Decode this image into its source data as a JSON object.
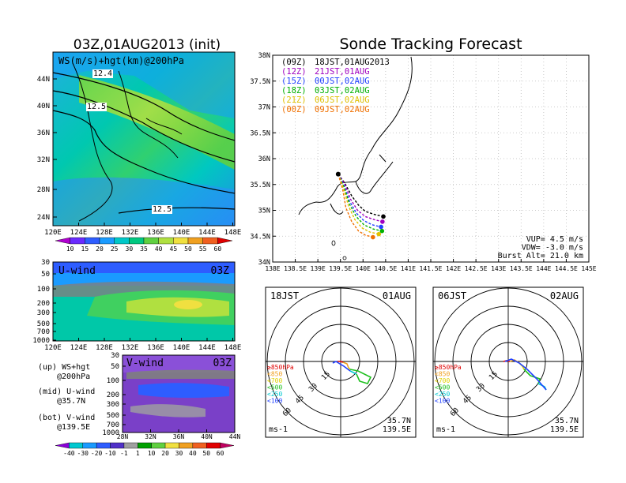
{
  "left_title": "03Z,01AUG2013 (init)",
  "right_title": "Sonde Tracking Forecast",
  "map": {
    "label": "WS(m/s)+hgt(km)@200hPa",
    "lat_ticks": [
      "44N",
      "40N",
      "36N",
      "32N",
      "28N",
      "24N"
    ],
    "lon_ticks": [
      "120E",
      "124E",
      "128E",
      "132E",
      "136E",
      "140E",
      "144E",
      "148E"
    ],
    "contour_labels": [
      "12.4",
      "12.5",
      "12.5"
    ],
    "colorbar": [
      "10",
      "15",
      "20",
      "25",
      "30",
      "35",
      "40",
      "45",
      "50",
      "55",
      "60"
    ],
    "colorbar_colors": [
      "#b000d0",
      "#6a2bff",
      "#2e5dff",
      "#1a9bff",
      "#00c8c8",
      "#00c880",
      "#60d040",
      "#b0e040",
      "#f0e040",
      "#f0a020",
      "#f06020",
      "#e00000"
    ]
  },
  "uwind": {
    "label": "U-wind",
    "time": "03Z",
    "p_ticks": [
      "30",
      "50",
      "100",
      "200",
      "300",
      "500",
      "700",
      "1000"
    ],
    "lon_ticks": [
      "120E",
      "124E",
      "128E",
      "132E",
      "136E",
      "140E",
      "144E",
      "148E"
    ]
  },
  "vwind": {
    "label": "V-wind",
    "time": "03Z",
    "p_ticks": [
      "30",
      "50",
      "100",
      "200",
      "300",
      "500",
      "700",
      "1000"
    ],
    "lat_ticks": [
      "28N",
      "32N",
      "36N",
      "40N",
      "44N"
    ],
    "colorbar": [
      "-40",
      "-30",
      "-20",
      "-10",
      "-1",
      "1",
      "10",
      "20",
      "30",
      "40",
      "50",
      "60"
    ],
    "colorbar_colors": [
      "#8a00d8",
      "#00c8d0",
      "#1a9bff",
      "#2e5dff",
      "#5030c8",
      "#a0a0a0",
      "#00a000",
      "#60d040",
      "#f0e040",
      "#f0a020",
      "#f06020",
      "#e00000",
      "#c00060"
    ]
  },
  "notes": [
    "(up) WS+hgt",
    "@200hPa",
    "(mid) U-wind",
    "@35.7N",
    "(bot) V-wind",
    "@139.5E"
  ],
  "track": {
    "lat_ticks": [
      "38N",
      "37.5N",
      "37N",
      "36.5N",
      "36N",
      "35.5N",
      "35N",
      "34.5N",
      "34N"
    ],
    "lon_ticks": [
      "138E",
      "138.5E",
      "139E",
      "139.5E",
      "140E",
      "140.5E",
      "141E",
      "141.5E",
      "142E",
      "142.5E",
      "143E",
      "143.5E",
      "144E",
      "144.5E",
      "145E"
    ],
    "legend": [
      {
        "z": "(09Z)",
        "jst": "18JST,01AUG2013",
        "color": "#000000"
      },
      {
        "z": "(12Z)",
        "jst": "21JST,01AUG",
        "color": "#a000c0"
      },
      {
        "z": "(15Z)",
        "jst": "00JST,02AUG",
        "color": "#2040ff"
      },
      {
        "z": "(18Z)",
        "jst": "03JST,02AUG",
        "color": "#00b000"
      },
      {
        "z": "(21Z)",
        "jst": "06JST,02AUG",
        "color": "#e0c000"
      },
      {
        "z": "(00Z)",
        "jst": "09JST,02AUG",
        "color": "#f07000"
      }
    ],
    "info": [
      "VUP= 4.5 m/s",
      "VDW= -3.0 m/s",
      "Burst Alt= 21.0 km"
    ]
  },
  "hodo_left": {
    "time": "18JST",
    "date": "01AUG",
    "lat": "35.7N",
    "lon": "139.5E",
    "unit": "ms-1",
    "rings": [
      "15",
      "30",
      "45",
      "60"
    ]
  },
  "hodo_right": {
    "time": "06JST",
    "date": "02AUG",
    "lat": "35.7N",
    "lon": "139.5E",
    "unit": "ms-1",
    "rings": [
      "15",
      "30",
      "45",
      "60"
    ]
  },
  "hodo_legend": [
    {
      "label": "≥850hPa",
      "color": "#e00000"
    },
    {
      "label": "<850",
      "color": "#f0a020"
    },
    {
      "label": "<700",
      "color": "#e0d000"
    },
    {
      "label": "<500",
      "color": "#20c020"
    },
    {
      "label": "<250",
      "color": "#00c8d0"
    },
    {
      "label": "<100",
      "color": "#2040ff"
    }
  ],
  "chart_data": [
    {
      "type": "line",
      "title": "Sonde Tracking Forecast",
      "xlabel": "",
      "ylabel": "",
      "xlim": [
        138,
        145
      ],
      "ylim": [
        34,
        38
      ],
      "series": [
        {
          "name": "(09Z) 18JST,01AUG2013",
          "x": [
            139.45,
            139.6,
            139.75,
            139.9,
            140.05,
            140.25,
            140.45
          ],
          "y": [
            35.7,
            35.52,
            35.28,
            35.1,
            34.98,
            34.92,
            34.88
          ]
        },
        {
          "name": "(12Z) 21JST,01AUG",
          "x": [
            139.45,
            139.6,
            139.72,
            139.88,
            140.05,
            140.25,
            140.43
          ],
          "y": [
            35.7,
            35.5,
            35.22,
            35.0,
            34.88,
            34.82,
            34.78
          ]
        },
        {
          "name": "(15Z) 00JST,02AUG",
          "x": [
            139.45,
            139.58,
            139.7,
            139.85,
            140.02,
            140.2,
            140.4
          ],
          "y": [
            35.7,
            35.48,
            35.18,
            34.95,
            34.8,
            34.72,
            34.68
          ]
        },
        {
          "name": "(18Z) 03JST,02AUG",
          "x": [
            139.45,
            139.58,
            139.7,
            139.85,
            140.02,
            140.22,
            140.42
          ],
          "y": [
            35.7,
            35.45,
            35.12,
            34.88,
            34.72,
            34.64,
            34.6
          ]
        },
        {
          "name": "(21Z) 06JST,02AUG",
          "x": [
            139.45,
            139.57,
            139.68,
            139.82,
            139.98,
            140.15,
            140.35
          ],
          "y": [
            35.7,
            35.42,
            35.08,
            34.82,
            34.66,
            34.58,
            34.54
          ]
        },
        {
          "name": "(00Z) 09JST,02AUG",
          "x": [
            139.45,
            139.55,
            139.62,
            139.75,
            139.9,
            140.05,
            140.22
          ],
          "y": [
            35.7,
            35.4,
            35.05,
            34.78,
            34.6,
            34.52,
            34.48
          ]
        }
      ]
    }
  ]
}
